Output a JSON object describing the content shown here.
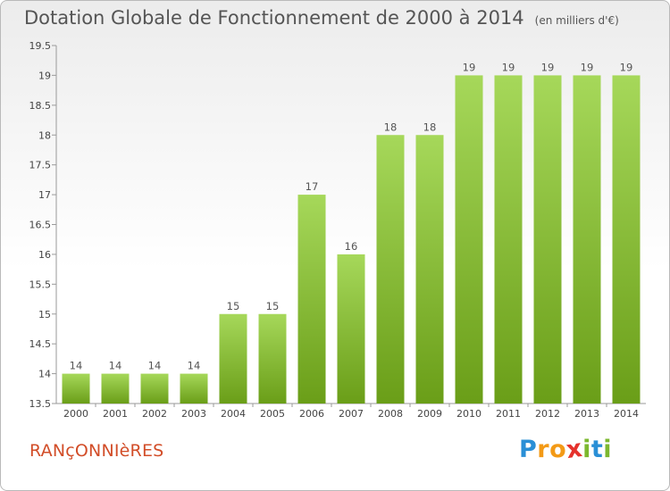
{
  "title": "Dotation Globale de Fonctionnement de 2000 à 2014",
  "subtitle": "(en milliers d'€)",
  "commune": "RANçONNIèRES",
  "logo": {
    "letters": [
      "P",
      "r",
      "o",
      "x",
      "i",
      "t",
      "i"
    ],
    "colors": [
      "#2a8fd6",
      "#f39a16",
      "#f39a16",
      "#e5322c",
      "#7cb82f",
      "#2a8fd6",
      "#7cb82f"
    ]
  },
  "colors": {
    "bar_light": "#a6d85a",
    "bar_dark": "#6a9e18",
    "title": "#555555",
    "commune": "#d24d28"
  },
  "chart_data": {
    "type": "bar",
    "categories": [
      "2000",
      "2001",
      "2002",
      "2003",
      "2004",
      "2005",
      "2006",
      "2007",
      "2008",
      "2009",
      "2010",
      "2011",
      "2012",
      "2013",
      "2014"
    ],
    "values": [
      14,
      14,
      14,
      14,
      15,
      15,
      17,
      16,
      18,
      18,
      19,
      19,
      19,
      19,
      19
    ],
    "title": "Dotation Globale de Fonctionnement de 2000 à 2014",
    "subtitle": "(en milliers d'€)",
    "xlabel": "",
    "ylabel": "",
    "ylim": [
      13.5,
      19.5
    ],
    "yticks": [
      13.5,
      14,
      14.5,
      15,
      15.5,
      16,
      16.5,
      17,
      17.5,
      18,
      18.5,
      19,
      19.5
    ],
    "ytick_labels": [
      "13.5",
      "14",
      "14.5",
      "15",
      "15.5",
      "16",
      "16.5",
      "17",
      "17.5",
      "18",
      "18.5",
      "19",
      "19.5"
    ],
    "grid": false,
    "legend": "none"
  }
}
